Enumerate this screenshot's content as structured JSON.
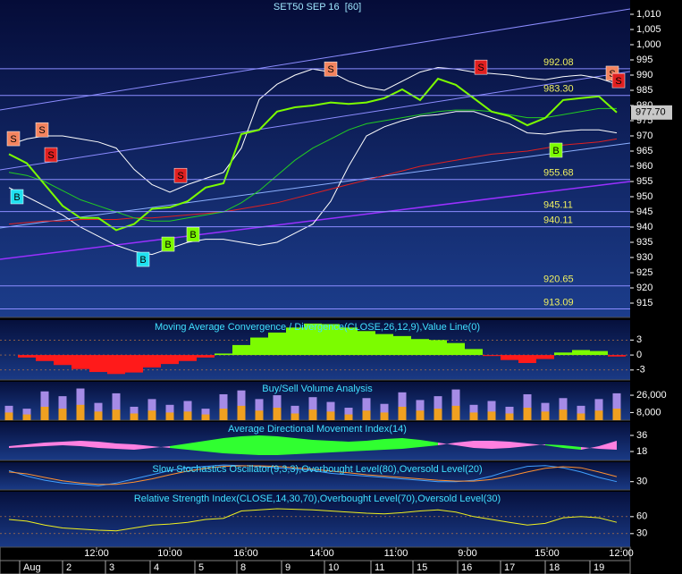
{
  "chart_data": [
    {
      "type": "line",
      "title": "SET50 SEP 16  [60]",
      "x": [
        0,
        1,
        2,
        3,
        4,
        5,
        6,
        7,
        8,
        9,
        10,
        11,
        12,
        13,
        14,
        15,
        16,
        17,
        18,
        19,
        20,
        21,
        22,
        23,
        24,
        25,
        26,
        27,
        28,
        29,
        30,
        31,
        32,
        33,
        34
      ],
      "xlim": [
        -0.5,
        34.75
      ],
      "ylim": [
        910.3,
        1014.7
      ],
      "yticks": [
        915,
        920,
        925,
        930,
        935,
        940,
        945,
        950,
        955,
        960,
        965,
        970,
        975,
        980,
        985,
        990,
        995,
        {
          "value": 1000,
          "label": "1,000"
        },
        {
          "value": 1005,
          "label": "1,005"
        },
        {
          "value": 1010,
          "label": "1,010"
        }
      ],
      "series": [
        {
          "color": "#ffffff",
          "values": [
            967,
            969,
            970,
            970,
            969,
            968,
            966,
            959,
            954,
            951.5,
            954,
            956,
            958,
            966,
            982,
            987,
            990,
            992,
            991,
            988,
            986,
            985,
            988,
            991,
            992.5,
            992,
            991,
            990.5,
            990,
            989,
            988.5,
            989.5,
            990,
            989,
            987
          ]
        },
        {
          "color": "#ffffff",
          "values": [
            953,
            950,
            947,
            944,
            940,
            937,
            934,
            932,
            931,
            933,
            935,
            936,
            936,
            935,
            934,
            935,
            938,
            941,
            948.5,
            960,
            970,
            973,
            975,
            976.5,
            977,
            978,
            978,
            976,
            974,
            971,
            970.6,
            971.5,
            972,
            972,
            971
          ]
        },
        {
          "color": "#e02020",
          "values": [
            941,
            941.5,
            942,
            942,
            942.5,
            942.5,
            942.5,
            943,
            943,
            943.5,
            944,
            944.5,
            945,
            946,
            947,
            948,
            949.5,
            951,
            952.5,
            954,
            955.5,
            957,
            958.5,
            960,
            961,
            962,
            963,
            964,
            964.5,
            965,
            966,
            967,
            967.5,
            968,
            969
          ]
        },
        {
          "color": "#22cc22",
          "values": [
            958,
            957,
            955,
            952,
            949,
            947,
            945,
            943,
            942,
            942,
            943,
            944,
            945,
            948,
            952,
            957,
            962,
            966,
            969,
            972,
            974,
            975,
            976,
            977,
            978,
            978.5,
            978.5,
            978,
            977,
            976,
            976,
            977,
            978,
            979,
            979
          ]
        },
        {
          "color": "#7cfc00",
          "values": [
            964,
            961,
            954,
            947,
            943,
            943,
            939,
            941,
            946,
            946.5,
            948.5,
            953,
            954.4,
            970.6,
            972,
            978,
            979.4,
            980,
            981,
            980.5,
            981,
            982.4,
            985.3,
            981.8,
            988.8,
            986.8,
            982.4,
            978,
            976.5,
            973.5,
            975.9,
            981.8,
            982.4,
            983,
            977.7
          ]
        }
      ],
      "level_color": "#8c8cff",
      "levels": [
        992.08,
        {
          "value": 983.3,
          "label": "983.30"
        },
        955.68,
        945.11,
        940.11,
        920.65,
        913.09
      ],
      "current_price": {
        "value": 977.7,
        "label": "977.70"
      },
      "signals": [
        {
          "label": "S",
          "color": "#f4845f",
          "x": 0.25,
          "y": 969.1
        },
        {
          "label": "S",
          "color": "#f4845f",
          "x": 1.85,
          "y": 972
        },
        {
          "label": "S",
          "color": "#e02020",
          "x": 2.35,
          "y": 963.8
        },
        {
          "label": "B",
          "color": "#20e0f0",
          "x": 0.45,
          "y": 950
        },
        {
          "label": "S",
          "color": "#e02020",
          "x": 9.6,
          "y": 957
        },
        {
          "label": "B",
          "color": "#20e0f0",
          "x": 7.5,
          "y": 929.4
        },
        {
          "label": "B",
          "color": "#7cfc00",
          "x": 8.9,
          "y": 934.4
        },
        {
          "label": "B",
          "color": "#7cfc00",
          "x": 10.3,
          "y": 937.6
        },
        {
          "label": "S",
          "color": "#f4845f",
          "x": 18,
          "y": 992
        },
        {
          "label": "S",
          "color": "#e02020",
          "x": 26.4,
          "y": 992.6
        },
        {
          "label": "B",
          "color": "#7cfc00",
          "x": 30.6,
          "y": 965.3
        },
        {
          "label": "S",
          "color": "#f4845f",
          "x": 33.75,
          "y": 990.6
        },
        {
          "label": "S",
          "color": "#e02020",
          "x": 34.1,
          "y": 988.2
        }
      ]
    },
    {
      "type": "bar",
      "title": "Moving Average Convergence / Divergence(CLOSE,26,12,9),Value Line(0)",
      "ylim": [
        -5,
        7
      ],
      "yticks": [
        3,
        0,
        -3
      ],
      "grid": true,
      "positive_color": "#7cfc00",
      "negative_color": "#ff1a1a",
      "values": [
        0,
        -0.5,
        -1.2,
        -2,
        -2.8,
        -3.4,
        -3.8,
        -3.5,
        -2.5,
        -1.8,
        -1.2,
        -0.5,
        0.3,
        2,
        3.5,
        4.5,
        5.5,
        6.3,
        6.2,
        5.5,
        4.8,
        4.2,
        3.8,
        3.2,
        3,
        2.4,
        1.2,
        -0.2,
        -1,
        -1.6,
        -0.8,
        0.5,
        1,
        0.8,
        -0.3
      ]
    },
    {
      "type": "bar",
      "title": "Buy/Sell Volume Analysis",
      "ylim": [
        0,
        40000
      ],
      "yticks": [
        {
          "value": 26000,
          "label": "26,000"
        },
        {
          "value": 8000,
          "label": "8,000"
        }
      ],
      "series": [
        {
          "color": "#a58be6",
          "values": [
            15000,
            12000,
            30000,
            25000,
            33000,
            18000,
            28000,
            14000,
            22000,
            16000,
            20000,
            12000,
            27000,
            31000,
            22000,
            26000,
            15000,
            24000,
            19000,
            13000,
            23000,
            17000,
            29000,
            21000,
            25000,
            32000,
            16000,
            20000,
            14000,
            27000,
            18000,
            23000,
            15000,
            22000,
            28000
          ]
        },
        {
          "color": "#f0a020",
          "values": [
            8000,
            6000,
            14000,
            12000,
            16000,
            9000,
            11000,
            7000,
            10000,
            8000,
            9000,
            6000,
            12000,
            15000,
            10000,
            13000,
            7000,
            11000,
            9000,
            6000,
            10000,
            8000,
            14000,
            10000,
            12000,
            15000,
            8000,
            9000,
            7000,
            13000,
            9000,
            11000,
            7000,
            10000,
            12000
          ]
        }
      ]
    },
    {
      "type": "area",
      "title": "Average Directional Movement Index(14)",
      "ylim": [
        8,
        51
      ],
      "yticks": [
        36,
        18
      ],
      "series": [
        {
          "color": "#ff80e0",
          "values": [
            24,
            26,
            28,
            29,
            30,
            29,
            27,
            26,
            24,
            22,
            20,
            18,
            16,
            15,
            14,
            14,
            15,
            16,
            17,
            18,
            19,
            20,
            21,
            23,
            25,
            28,
            30,
            30,
            29,
            27,
            25,
            22,
            20,
            24,
            30
          ]
        },
        {
          "color": "#30ff30",
          "values": [
            22,
            23,
            24,
            25,
            24,
            22,
            21,
            20,
            22,
            24,
            27,
            30,
            33,
            35,
            36,
            35,
            33,
            31,
            30,
            29,
            30,
            32,
            33,
            31,
            28,
            25,
            22,
            21,
            22,
            24,
            26,
            25,
            23,
            21,
            20
          ]
        }
      ]
    },
    {
      "type": "line",
      "title": "Slow Stochastics Oscillator(9,3,3),Overbought Level(80),Oversold Level(20)",
      "ylim": [
        0,
        100
      ],
      "yticks": [
        30
      ],
      "series": [
        {
          "color": "#40a0ff",
          "values": [
            70,
            50,
            35,
            25,
            20,
            15,
            25,
            40,
            55,
            70,
            80,
            85,
            90,
            88,
            85,
            80,
            75,
            70,
            60,
            55,
            50,
            45,
            40,
            35,
            30,
            30,
            35,
            50,
            70,
            85,
            88,
            80,
            65,
            45,
            30
          ]
        },
        {
          "color": "#ff9030",
          "values": [
            65,
            58,
            45,
            33,
            25,
            20,
            20,
            28,
            40,
            55,
            68,
            78,
            85,
            87,
            87,
            85,
            80,
            75,
            68,
            62,
            55,
            50,
            45,
            40,
            35,
            32,
            32,
            38,
            50,
            65,
            78,
            84,
            80,
            65,
            48
          ]
        }
      ]
    },
    {
      "type": "line",
      "title": "Relative Strength Index(CLOSE,14,30,70),Overbought Level(70),Oversold Level(30)",
      "ylim": [
        6,
        104
      ],
      "yticks": [
        60,
        30
      ],
      "grid": true,
      "series": [
        {
          "color": "#f0f020",
          "values": [
            55,
            52,
            45,
            40,
            38,
            36,
            35,
            40,
            45,
            47,
            50,
            55,
            57,
            70,
            72,
            74,
            73,
            72,
            70,
            68,
            66,
            65,
            67,
            70,
            72,
            68,
            60,
            55,
            50,
            45,
            48,
            58,
            60,
            58,
            50
          ]
        }
      ],
      "xticks": [
        {
          "value": 4.9,
          "label": "12:00"
        },
        {
          "value": 9,
          "label": "10:00"
        },
        {
          "value": 13.25,
          "label": "16:00"
        },
        {
          "value": 17.5,
          "label": "14:00"
        },
        {
          "value": 21.65,
          "label": "11:00"
        },
        {
          "value": 25.65,
          "label": "9:00"
        },
        {
          "value": 30.1,
          "label": "15:00"
        },
        {
          "value": 34.25,
          "label": "12:00"
        }
      ],
      "day_ticks": [
        {
          "value": 0.6,
          "label": "Aug"
        },
        {
          "value": 3,
          "label": "2"
        },
        {
          "value": 5.4,
          "label": "3"
        },
        {
          "value": 7.9,
          "label": "4"
        },
        {
          "value": 10.4,
          "label": "5"
        },
        {
          "value": 12.75,
          "label": "8"
        },
        {
          "value": 15.25,
          "label": "9"
        },
        {
          "value": 17.65,
          "label": "10"
        },
        {
          "value": 20.25,
          "label": "11"
        },
        {
          "value": 22.6,
          "label": "15"
        },
        {
          "value": 25.1,
          "label": "16"
        },
        {
          "value": 27.5,
          "label": "17"
        },
        {
          "value": 30,
          "label": "18"
        },
        {
          "value": 32.5,
          "label": "19"
        }
      ]
    }
  ]
}
